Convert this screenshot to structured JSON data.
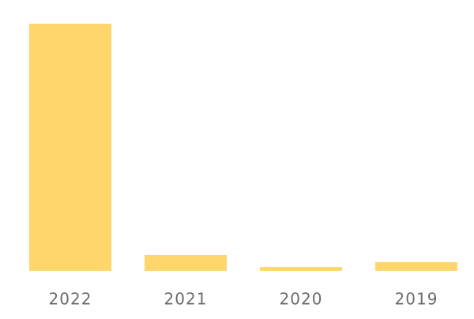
{
  "chart_data": {
    "type": "bar",
    "categories": [
      "2022",
      "2021",
      "2020",
      "2019"
    ],
    "values": [
      100,
      6.4,
      1.6,
      3.5
    ],
    "color": "#fed66b",
    "ylim": [
      0,
      100
    ]
  }
}
